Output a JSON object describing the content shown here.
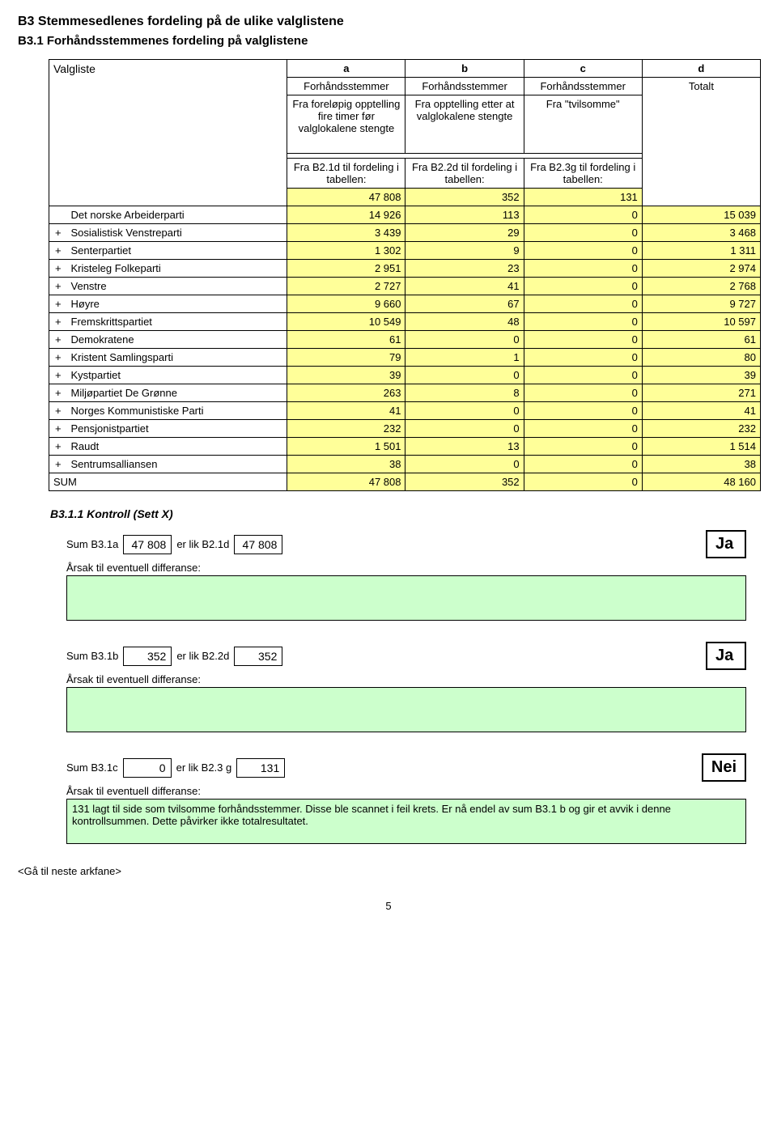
{
  "titles": {
    "b3": "B3  Stemmesedlenes fordeling på de ulike valglistene",
    "b31": "B3.1 Forhåndsstemmenes fordeling på valglistene",
    "valgliste": "Valgliste",
    "kontroll": "B3.1.1 Kontroll  (Sett X)"
  },
  "header": {
    "cols": [
      "a",
      "b",
      "c",
      "d"
    ],
    "sub": [
      "Forhåndsstemmer",
      "Forhåndsstemmer",
      "Forhåndsstemmer",
      "Totalt"
    ],
    "sub2": [
      "Fra foreløpig opptelling fire timer før valglokalene stengte",
      "Fra opptelling etter at valglokalene stengte",
      "Fra \"tvilsomme\"",
      ""
    ],
    "fra_row": [
      "Fra B2.1d til fordeling i tabellen:",
      "Fra B2.2d til fordeling i tabellen:",
      "Fra B2.3g til fordeling i tabellen:"
    ],
    "fra_vals": [
      "47 808",
      "352",
      "131"
    ]
  },
  "rows": [
    {
      "plus": "",
      "name": "Det norske Arbeiderparti",
      "a": "14 926",
      "b": "113",
      "c": "0",
      "d": "15 039"
    },
    {
      "plus": "+",
      "name": "Sosialistisk Venstreparti",
      "a": "3 439",
      "b": "29",
      "c": "0",
      "d": "3 468"
    },
    {
      "plus": "+",
      "name": "Senterpartiet",
      "a": "1 302",
      "b": "9",
      "c": "0",
      "d": "1 311"
    },
    {
      "plus": "+",
      "name": "Kristeleg Folkeparti",
      "a": "2 951",
      "b": "23",
      "c": "0",
      "d": "2 974"
    },
    {
      "plus": "+",
      "name": "Venstre",
      "a": "2 727",
      "b": "41",
      "c": "0",
      "d": "2 768"
    },
    {
      "plus": "+",
      "name": "Høyre",
      "a": "9 660",
      "b": "67",
      "c": "0",
      "d": "9 727"
    },
    {
      "plus": "+",
      "name": "Fremskrittspartiet",
      "a": "10 549",
      "b": "48",
      "c": "0",
      "d": "10 597"
    },
    {
      "plus": "+",
      "name": "Demokratene",
      "a": "61",
      "b": "0",
      "c": "0",
      "d": "61"
    },
    {
      "plus": "+",
      "name": "Kristent Samlingsparti",
      "a": "79",
      "b": "1",
      "c": "0",
      "d": "80"
    },
    {
      "plus": "+",
      "name": "Kystpartiet",
      "a": "39",
      "b": "0",
      "c": "0",
      "d": "39"
    },
    {
      "plus": "+",
      "name": "Miljøpartiet De Grønne",
      "a": "263",
      "b": "8",
      "c": "0",
      "d": "271"
    },
    {
      "plus": "+",
      "name": "Norges Kommunistiske Parti",
      "a": "41",
      "b": "0",
      "c": "0",
      "d": "41"
    },
    {
      "plus": "+",
      "name": "Pensjonistpartiet",
      "a": "232",
      "b": "0",
      "c": "0",
      "d": "232"
    },
    {
      "plus": "+",
      "name": "Raudt",
      "a": "1 501",
      "b": "13",
      "c": "0",
      "d": "1 514"
    },
    {
      "plus": "+",
      "name": "Sentrumsalliansen",
      "a": "38",
      "b": "0",
      "c": "0",
      "d": "38"
    }
  ],
  "sum": {
    "label": "SUM",
    "a": "47 808",
    "b": "352",
    "c": "0",
    "d": "48 160"
  },
  "controls": [
    {
      "left": "Sum B3.1a",
      "lval": "47 808",
      "mid": "er lik B2.1d",
      "rval": "47 808",
      "ans": "Ja",
      "reason": ""
    },
    {
      "left": "Sum B3.1b",
      "lval": "352",
      "mid": "er lik B2.2d",
      "rval": "352",
      "ans": "Ja",
      "reason": ""
    },
    {
      "left": "Sum B3.1c",
      "lval": "0",
      "mid": "er lik B2.3 g",
      "rval": "131",
      "ans": "Nei",
      "reason": "131 lagt til side som tvilsomme forhåndsstemmer. Disse ble scannet i feil krets. Er nå endel av sum B3.1 b og gir et avvik i denne kontrollsummen. Dette påvirker ikke totalresultatet."
    }
  ],
  "arsak": "Årsak til eventuell differanse:",
  "footer": "<Gå til neste arkfane>",
  "page": "5",
  "colors": {
    "yellow": "#ffff99",
    "green": "#ccffcc"
  }
}
